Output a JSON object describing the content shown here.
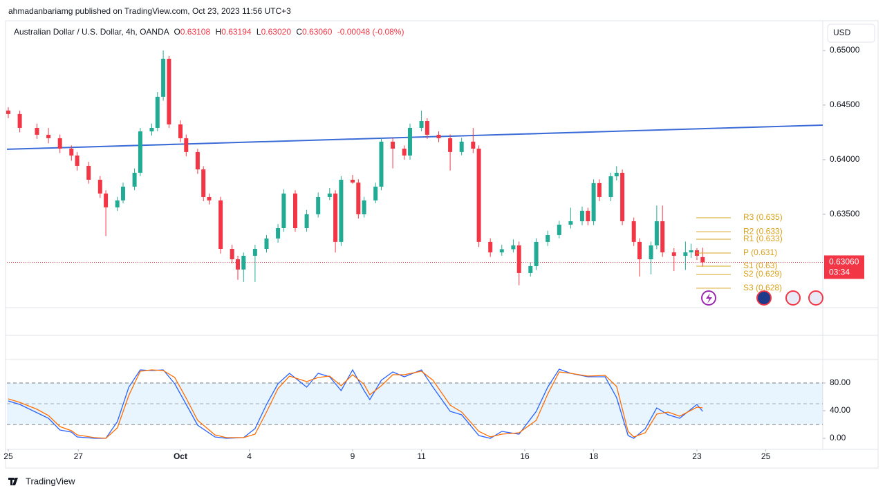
{
  "header": {
    "published": "ahmadanbariamg published on TradingView.com, Oct 23, 2023 11:56 UTC+3",
    "currency": "USD",
    "brand": "TradingView"
  },
  "legend": {
    "symbol": "Australian Dollar / U.S. Dollar, 4h, OANDA",
    "open_label": "O",
    "open": "0.63108",
    "high_label": "H",
    "high": "0.63194",
    "low_label": "L",
    "low": "0.63020",
    "close_label": "C",
    "close": "0.63060",
    "change": "-0.00048 (-0.08%)"
  },
  "chart_data": {
    "type": "candlestick",
    "up_color": "#22ab94",
    "down_color": "#f23645",
    "x": [
      0,
      2,
      5,
      7,
      9,
      11,
      12,
      14,
      16,
      17,
      19,
      20,
      22,
      23,
      25,
      26,
      27,
      28,
      30,
      31,
      33,
      34,
      35,
      37,
      39,
      40,
      41,
      43,
      45,
      47,
      48,
      50,
      52,
      54,
      56,
      57,
      58,
      60,
      61,
      62,
      64,
      65,
      67,
      69,
      70,
      72,
      73,
      75,
      77,
      79,
      81,
      82,
      84,
      86,
      88,
      89,
      91,
      92,
      94,
      96,
      98,
      100,
      101,
      102,
      103,
      105,
      106,
      107,
      109,
      110,
      112,
      113,
      114,
      116,
      118,
      119,
      120,
      121
    ],
    "open": [
      0.6445,
      0.64418,
      0.64291,
      0.64228,
      0.64196,
      0.64101,
      0.64038,
      0.63943,
      0.63816,
      0.6369,
      0.63563,
      0.63627,
      0.63753,
      0.6388,
      0.64259,
      0.64291,
      0.64576,
      0.64924,
      0.64323,
      0.64196,
      0.6407,
      0.63911,
      0.63658,
      0.63627,
      0.63183,
      0.63088,
      0.62994,
      0.6312,
      0.63183,
      0.63278,
      0.63373,
      0.6369,
      0.63373,
      0.635,
      0.63658,
      0.6369,
      0.63247,
      0.63816,
      0.6379,
      0.635,
      0.63627,
      0.63753,
      0.64165,
      0.64101,
      0.64038,
      0.64291,
      0.64354,
      0.64228,
      0.64196,
      0.6407,
      0.64165,
      0.64101,
      0.63247,
      0.63151,
      0.6318,
      0.63215,
      0.62962,
      0.63025,
      0.63247,
      0.6331,
      0.63405,
      0.63436,
      0.63532,
      0.63436,
      0.63785,
      0.63658,
      0.63848,
      0.6388,
      0.63436,
      0.63247,
      0.63088,
      0.63215,
      0.63436,
      0.63151,
      0.6312,
      0.63151,
      0.6317,
      0.63108
    ],
    "high": [
      0.6448,
      0.6445,
      0.6433,
      0.6429,
      0.6423,
      0.6413,
      0.6407,
      0.6398,
      0.6385,
      0.6372,
      0.6366,
      0.6379,
      0.6392,
      0.6429,
      0.6433,
      0.6462,
      0.65,
      0.6495,
      0.6436,
      0.6423,
      0.641,
      0.6394,
      0.6369,
      0.6366,
      0.6322,
      0.6312,
      0.6315,
      0.6322,
      0.6331,
      0.6341,
      0.6373,
      0.6372,
      0.6354,
      0.637,
      0.6374,
      0.6372,
      0.6385,
      0.6386,
      0.6382,
      0.6366,
      0.6379,
      0.642,
      0.642,
      0.6413,
      0.6433,
      0.6445,
      0.6438,
      0.6426,
      0.6423,
      0.642,
      0.6429,
      0.6413,
      0.6328,
      0.6322,
      0.6327,
      0.6325,
      0.6306,
      0.6328,
      0.6335,
      0.6344,
      0.6356,
      0.6357,
      0.6356,
      0.6382,
      0.6382,
      0.6388,
      0.6394,
      0.6391,
      0.6347,
      0.6328,
      0.6325,
      0.6358,
      0.6358,
      0.6319,
      0.6325,
      0.6323,
      0.6319,
      0.63194
    ],
    "low": [
      0.6438,
      0.6425,
      0.6419,
      0.6415,
      0.6406,
      0.6399,
      0.639,
      0.6378,
      0.6365,
      0.633,
      0.6353,
      0.636,
      0.6372,
      0.6385,
      0.6422,
      0.6426,
      0.6454,
      0.6429,
      0.6416,
      0.6403,
      0.6387,
      0.6362,
      0.6359,
      0.6314,
      0.6305,
      0.629,
      0.6288,
      0.6288,
      0.6315,
      0.6324,
      0.6334,
      0.6334,
      0.6334,
      0.6347,
      0.6363,
      0.6315,
      0.6321,
      0.6378,
      0.6346,
      0.6347,
      0.636,
      0.6372,
      0.6392,
      0.64,
      0.64,
      0.6426,
      0.6419,
      0.6416,
      0.639,
      0.6404,
      0.6406,
      0.632,
      0.6311,
      0.6312,
      0.6315,
      0.6285,
      0.6293,
      0.6299,
      0.6321,
      0.6328,
      0.6337,
      0.634,
      0.634,
      0.634,
      0.6362,
      0.6362,
      0.6381,
      0.634,
      0.6321,
      0.6293,
      0.6295,
      0.6318,
      0.6311,
      0.6298,
      0.6299,
      0.631,
      0.6308,
      0.6302
    ],
    "close": [
      0.64418,
      0.64291,
      0.64228,
      0.64196,
      0.64101,
      0.64038,
      0.63943,
      0.63816,
      0.6369,
      0.63563,
      0.63627,
      0.63753,
      0.6388,
      0.64259,
      0.64291,
      0.64576,
      0.64924,
      0.64323,
      0.64196,
      0.6407,
      0.63911,
      0.63658,
      0.63627,
      0.63183,
      0.63088,
      0.62994,
      0.6312,
      0.63183,
      0.63278,
      0.63373,
      0.6369,
      0.63373,
      0.635,
      0.63658,
      0.6369,
      0.63247,
      0.63816,
      0.6379,
      0.635,
      0.63627,
      0.63753,
      0.64165,
      0.64101,
      0.64038,
      0.64291,
      0.64354,
      0.64228,
      0.64196,
      0.6407,
      0.64165,
      0.64101,
      0.63247,
      0.63151,
      0.6318,
      0.63215,
      0.62962,
      0.63025,
      0.63247,
      0.6331,
      0.63405,
      0.63436,
      0.63532,
      0.63436,
      0.63785,
      0.63658,
      0.63848,
      0.6388,
      0.63436,
      0.63247,
      0.63088,
      0.63215,
      0.63436,
      0.63151,
      0.6312,
      0.63151,
      0.6317,
      0.6312,
      0.6306
    ],
    "xlim": [
      -0.24,
      141.93
    ],
    "ylim": [
      0.62645,
      0.65272
    ],
    "yticks": [
      {
        "value": 0.65,
        "label": "0.65000"
      },
      {
        "value": 0.645,
        "label": "0.64500"
      },
      {
        "value": 0.64,
        "label": "0.64000"
      },
      {
        "value": 0.635,
        "label": "0.63500"
      }
    ],
    "xticks": [
      {
        "value": 0,
        "label": "25"
      },
      {
        "value": 12.2,
        "label": "27"
      },
      {
        "value": 30,
        "label": "Oct"
      },
      {
        "value": 42,
        "label": "4"
      },
      {
        "value": 60,
        "label": "9"
      },
      {
        "value": 72,
        "label": "11"
      },
      {
        "value": 90,
        "label": "16"
      },
      {
        "value": 102,
        "label": "18"
      },
      {
        "value": 120,
        "label": "23"
      },
      {
        "value": 132,
        "label": "25"
      }
    ],
    "trend_line": {
      "color": "#3a6bd6",
      "x": [
        -0.24,
        141.93
      ],
      "y": [
        0.64095,
        0.64316
      ]
    },
    "pivots": {
      "color": "#d9a21b",
      "levels": [
        {
          "label": "R3 (0.635)",
          "value": 0.63468
        },
        {
          "label": "R2 (0.633)",
          "value": 0.6334
        },
        {
          "label": "R1 (0.633)",
          "value": 0.63272
        },
        {
          "label": "P (0.631)",
          "value": 0.63145
        },
        {
          "label": "S1 (0.63)",
          "value": 0.63025
        },
        {
          "label": "S2 (0.629)",
          "value": 0.62949
        },
        {
          "label": "S3 (0.628)",
          "value": 0.62823
        }
      ]
    },
    "last_price": {
      "value": 0.6306,
      "label": "0.63060",
      "countdown": "03:34",
      "color": "#f23645"
    },
    "indicator": {
      "type": "line",
      "ylim": [
        -16,
        114
      ],
      "yticks": [
        {
          "value": 80,
          "label": "80.00"
        },
        {
          "value": 40,
          "label": "40.00"
        },
        {
          "value": 0,
          "label": "0.00"
        }
      ],
      "band": [
        20,
        80
      ],
      "midline": 50,
      "x": [
        0,
        2,
        5,
        7,
        9,
        11,
        12,
        15,
        17,
        19,
        21,
        23,
        25,
        27,
        29,
        31,
        33,
        36,
        38,
        41,
        43,
        45,
        47,
        49,
        52,
        54,
        56,
        58,
        60,
        62,
        63,
        65,
        67,
        69,
        72,
        74,
        77,
        79,
        82,
        84,
        86,
        89,
        92,
        94,
        96,
        98,
        101,
        104,
        106,
        108,
        109,
        111,
        113,
        115,
        117,
        120,
        121
      ],
      "series": [
        {
          "color": "#2962ff",
          "values": [
            54,
            49,
            37,
            29,
            12,
            9,
            2,
            0,
            0,
            24,
            74,
            99,
            98,
            99,
            79,
            49,
            19,
            2,
            0,
            1,
            14,
            49,
            79,
            94,
            74,
            94,
            89,
            69,
            99,
            69,
            56,
            84,
            96,
            89,
            99,
            74,
            39,
            34,
            4,
            0,
            10,
            6,
            39,
            74,
            100,
            94,
            89,
            89,
            59,
            4,
            0,
            14,
            44,
            34,
            29,
            49,
            39
          ]
        },
        {
          "color": "#ff6d00",
          "values": [
            57,
            52,
            42,
            33,
            17,
            11,
            5,
            1,
            0,
            15,
            62,
            97,
            99,
            98,
            88,
            58,
            26,
            5,
            1,
            1,
            6,
            38,
            72,
            90,
            82,
            88,
            90,
            76,
            92,
            78,
            63,
            76,
            92,
            92,
            97,
            84,
            48,
            38,
            10,
            2,
            6,
            8,
            26,
            64,
            96,
            94,
            90,
            91,
            75,
            10,
            2,
            8,
            35,
            38,
            32,
            45,
            44
          ]
        }
      ]
    }
  }
}
